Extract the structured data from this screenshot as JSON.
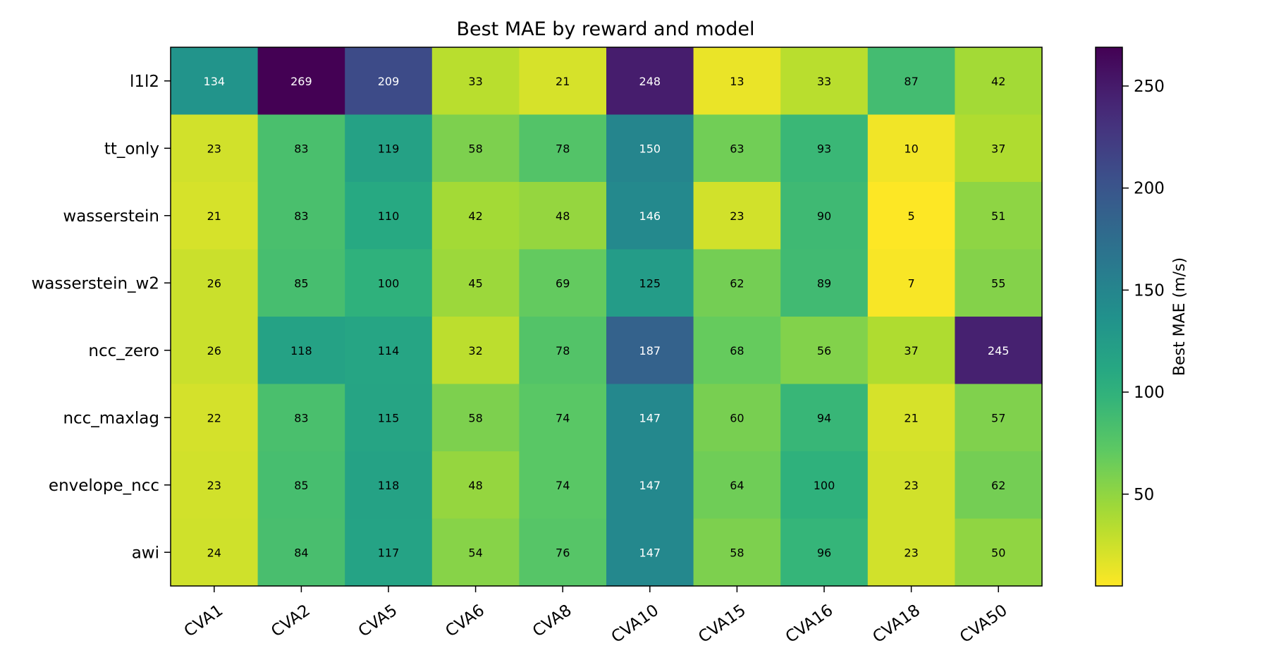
{
  "chart_data": {
    "type": "heatmap",
    "title": "Best MAE by reward and model",
    "rows": [
      "l1l2",
      "tt_only",
      "wasserstein",
      "wasserstein_w2",
      "ncc_zero",
      "ncc_maxlag",
      "envelope_ncc",
      "awi"
    ],
    "columns": [
      "CVA1",
      "CVA2",
      "CVA5",
      "CVA6",
      "CVA8",
      "CVA10",
      "CVA15",
      "CVA16",
      "CVA18",
      "CVA50"
    ],
    "values": [
      [
        134,
        269,
        209,
        33,
        21,
        248,
        13,
        33,
        87,
        42
      ],
      [
        23,
        83,
        119,
        58,
        78,
        150,
        63,
        93,
        10,
        37
      ],
      [
        21,
        83,
        110,
        42,
        48,
        146,
        23,
        90,
        5,
        51
      ],
      [
        26,
        85,
        100,
        45,
        69,
        125,
        62,
        89,
        7,
        55
      ],
      [
        26,
        118,
        114,
        32,
        78,
        187,
        68,
        56,
        37,
        245
      ],
      [
        22,
        83,
        115,
        58,
        74,
        147,
        60,
        94,
        21,
        57
      ],
      [
        23,
        85,
        118,
        48,
        74,
        147,
        64,
        100,
        23,
        62
      ],
      [
        24,
        84,
        117,
        54,
        76,
        147,
        58,
        96,
        23,
        50
      ]
    ],
    "colorbar": {
      "label": "Best MAE (m/s)",
      "range": [
        5,
        269
      ],
      "ticks": [
        50,
        100,
        150,
        200,
        250
      ],
      "colormap": "viridis_r"
    }
  }
}
